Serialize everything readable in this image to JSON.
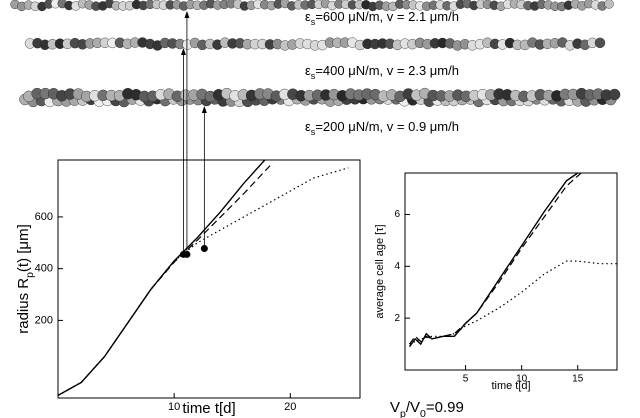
{
  "annotations": {
    "strip_labels": [
      {
        "symbol": "ε",
        "sub": "s",
        "text": "=600 μN/m, v = 2.1 μm/h"
      },
      {
        "symbol": "ε",
        "sub": "s",
        "text": "=400 μN/m, v = 2.3 μm/h"
      },
      {
        "symbol": "ε",
        "sub": "s",
        "text": "=200 μN/m, v = 0.9 μm/h"
      }
    ],
    "ratio": {
      "text": "V",
      "sub": "p",
      "mid": "/V",
      "sub2": "0",
      "rest": "=0.99"
    }
  },
  "chart_data": [
    {
      "type": "line",
      "xlabel": "time t[d]",
      "ylabel": {
        "text": "radius R",
        "sub": "p",
        "rest": "(t) [μm]"
      },
      "xlim": [
        0,
        26
      ],
      "ylim": [
        -100,
        820
      ],
      "xticks": [
        10,
        20
      ],
      "yticks": [
        200,
        400,
        600
      ],
      "series": [
        {
          "style": "solid",
          "color": "#000",
          "x": [
            0,
            2,
            4,
            6,
            8,
            10,
            12,
            14,
            16,
            17.8
          ],
          "values": [
            -90,
            -40,
            60,
            190,
            320,
            430,
            520,
            620,
            730,
            820
          ]
        },
        {
          "style": "dashed",
          "color": "#000",
          "x": [
            0,
            2,
            4,
            6,
            8,
            10,
            12,
            14,
            16,
            18.5
          ],
          "values": [
            -90,
            -40,
            60,
            190,
            320,
            425,
            510,
            600,
            690,
            810
          ]
        },
        {
          "style": "dotted",
          "color": "#000",
          "x": [
            0,
            2,
            4,
            6,
            8,
            10,
            12,
            14,
            16,
            18,
            20,
            22,
            25
          ],
          "values": [
            -90,
            -40,
            60,
            190,
            320,
            430,
            500,
            550,
            600,
            650,
            700,
            750,
            790
          ]
        }
      ],
      "markers": {
        "color": "#000",
        "x": [
          10.8,
          11.1,
          12.6
        ],
        "values": [
          455,
          455,
          478
        ]
      }
    },
    {
      "type": "line",
      "xlabel": "time t[d]",
      "ylabel": "average cell age [τ]",
      "xlim": [
        -0.4,
        18.5
      ],
      "ylim": [
        0,
        7.6
      ],
      "xticks": [
        5,
        10,
        15
      ],
      "yticks": [
        2,
        4,
        6
      ],
      "series": [
        {
          "style": "solid",
          "color": "#000",
          "x": [
            0,
            0.5,
            1,
            1.5,
            2,
            3,
            4,
            5,
            6,
            8,
            10,
            12,
            14,
            15
          ],
          "values": [
            0.9,
            1.2,
            1.0,
            1.4,
            1.2,
            1.3,
            1.3,
            1.8,
            2.2,
            3.5,
            4.8,
            6.1,
            7.3,
            7.6
          ]
        },
        {
          "style": "dashed",
          "color": "#000",
          "x": [
            0,
            0.5,
            1,
            1.5,
            2,
            3,
            4,
            5,
            6,
            8,
            10,
            12,
            14,
            15.3
          ],
          "values": [
            1.0,
            1.3,
            1.1,
            1.3,
            1.2,
            1.3,
            1.4,
            1.8,
            2.2,
            3.4,
            4.7,
            5.9,
            7.1,
            7.6
          ]
        },
        {
          "style": "dotted",
          "color": "#000",
          "x": [
            0,
            1,
            2,
            3,
            4,
            5,
            6,
            8,
            10,
            12,
            14,
            15,
            17,
            18.5
          ],
          "values": [
            1.0,
            1.2,
            1.3,
            1.3,
            1.4,
            1.7,
            1.9,
            2.4,
            3.0,
            3.7,
            4.2,
            4.2,
            4.1,
            4.1
          ]
        }
      ]
    }
  ]
}
